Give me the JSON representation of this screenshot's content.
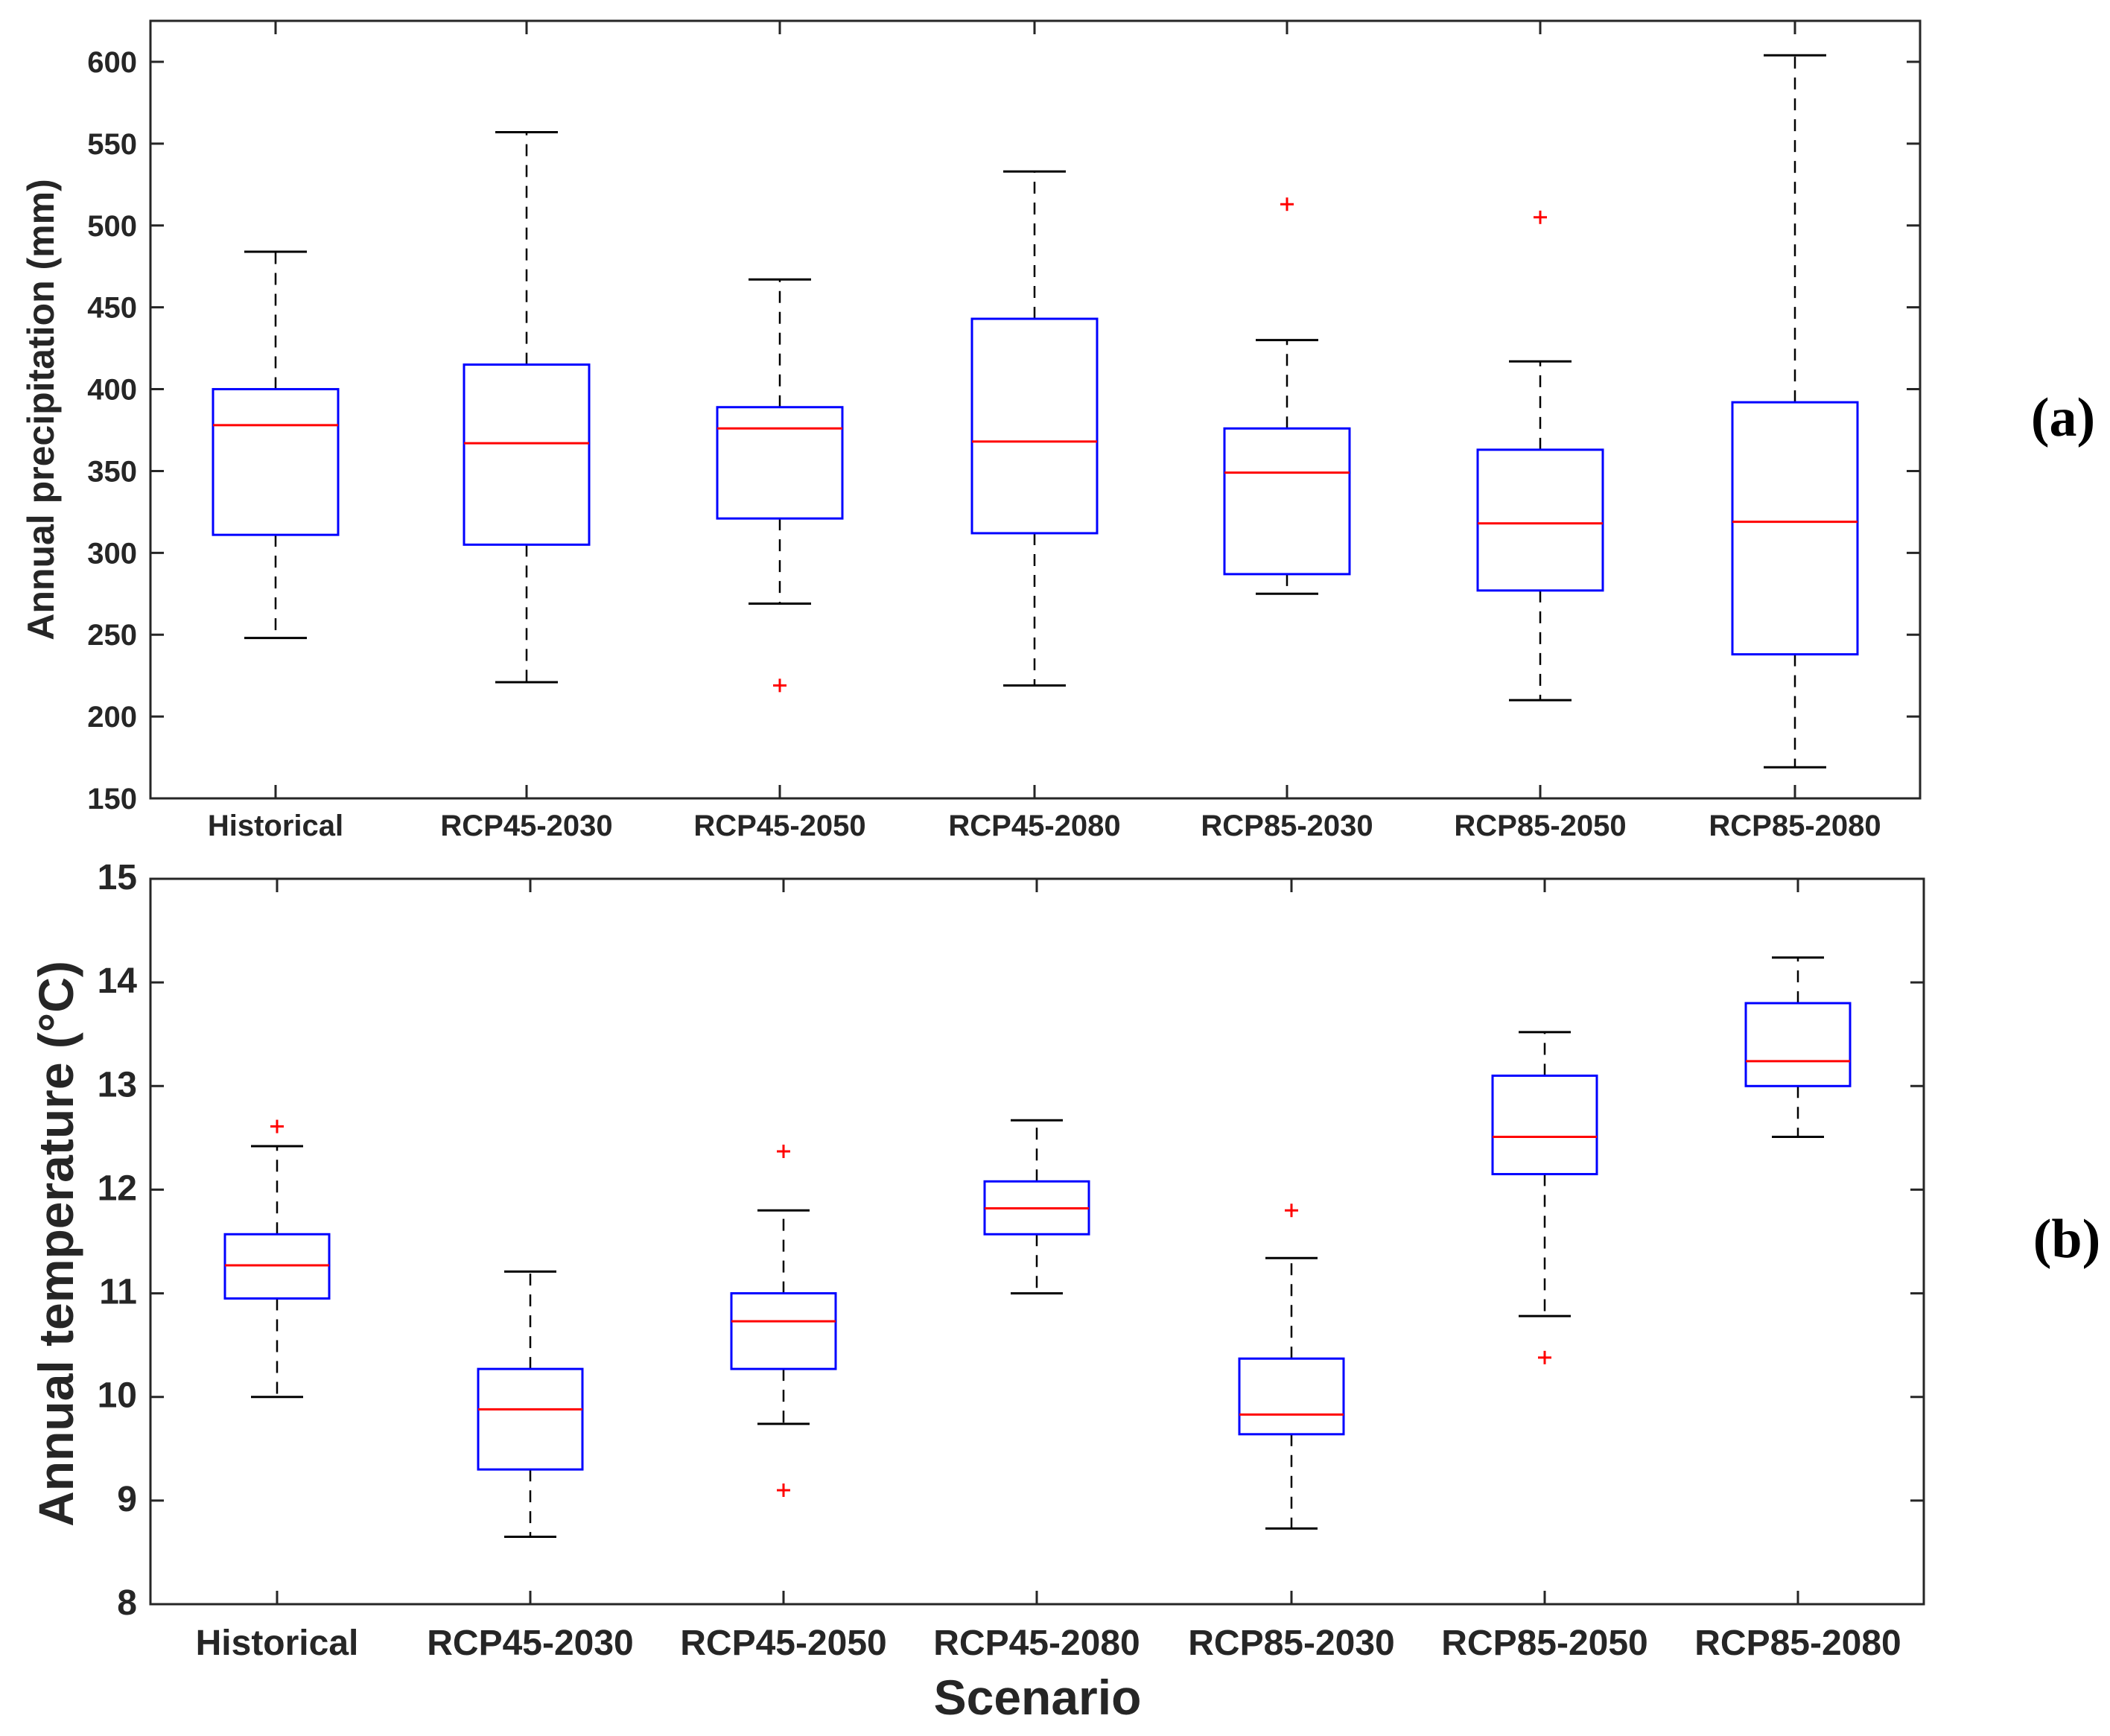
{
  "colors": {
    "box": "#0000ff",
    "median": "#ff0000",
    "whisker": "#000000",
    "outlier": "#ff0000",
    "axis": "#262626"
  },
  "chart_data": [
    {
      "type": "box",
      "panel_label": "(a)",
      "title": "",
      "xlabel": "",
      "ylabel": "Annual precipitation (mm)",
      "ylim": [
        150,
        600
      ],
      "yticks": [
        150,
        200,
        250,
        300,
        350,
        400,
        450,
        500,
        550,
        600
      ],
      "categories": [
        "Historical",
        "RCP45-2030",
        "RCP45-2050",
        "RCP45-2080",
        "RCP85-2030",
        "RCP85-2050",
        "RCP85-2080"
      ],
      "boxes": [
        {
          "min": 248,
          "q1": 311,
          "median": 378,
          "q3": 400,
          "max": 484,
          "outliers": []
        },
        {
          "min": 221,
          "q1": 305,
          "median": 367,
          "q3": 415,
          "max": 557,
          "outliers": []
        },
        {
          "min": 269,
          "q1": 321,
          "median": 376,
          "q3": 389,
          "max": 467,
          "outliers": [
            219
          ]
        },
        {
          "min": 219,
          "q1": 312,
          "median": 368,
          "q3": 443,
          "max": 533,
          "outliers": []
        },
        {
          "min": 275,
          "q1": 287,
          "median": 349,
          "q3": 376,
          "max": 430,
          "outliers": [
            513
          ]
        },
        {
          "min": 210,
          "q1": 277,
          "median": 318,
          "q3": 363,
          "max": 417,
          "outliers": [
            505
          ]
        },
        {
          "min": 169,
          "q1": 238,
          "median": 319,
          "q3": 392,
          "max": 604,
          "outliers": []
        }
      ]
    },
    {
      "type": "box",
      "panel_label": "(b)",
      "title": "",
      "xlabel": "Scenario",
      "ylabel": "Annual temperature (°C)",
      "ylim": [
        8,
        15
      ],
      "yticks": [
        8,
        9,
        10,
        11,
        12,
        13,
        14,
        15
      ],
      "categories": [
        "Historical",
        "RCP45-2030",
        "RCP45-2050",
        "RCP45-2080",
        "RCP85-2030",
        "RCP85-2050",
        "RCP85-2080"
      ],
      "boxes": [
        {
          "min": 10.0,
          "q1": 10.95,
          "median": 11.27,
          "q3": 11.57,
          "max": 12.42,
          "outliers": [
            12.61
          ]
        },
        {
          "min": 8.65,
          "q1": 9.3,
          "median": 9.88,
          "q3": 10.27,
          "max": 11.21,
          "outliers": []
        },
        {
          "min": 9.74,
          "q1": 10.27,
          "median": 10.73,
          "q3": 11.0,
          "max": 11.8,
          "outliers": [
            12.37,
            9.1
          ]
        },
        {
          "min": 11.0,
          "q1": 11.57,
          "median": 11.82,
          "q3": 12.08,
          "max": 12.67,
          "outliers": []
        },
        {
          "min": 8.73,
          "q1": 9.64,
          "median": 9.83,
          "q3": 10.37,
          "max": 11.34,
          "outliers": [
            11.8
          ]
        },
        {
          "min": 10.78,
          "q1": 12.15,
          "median": 12.51,
          "q3": 13.1,
          "max": 13.52,
          "outliers": [
            10.38
          ]
        },
        {
          "min": 12.51,
          "q1": 13.0,
          "median": 13.24,
          "q3": 13.8,
          "max": 14.24,
          "outliers": []
        }
      ]
    }
  ]
}
